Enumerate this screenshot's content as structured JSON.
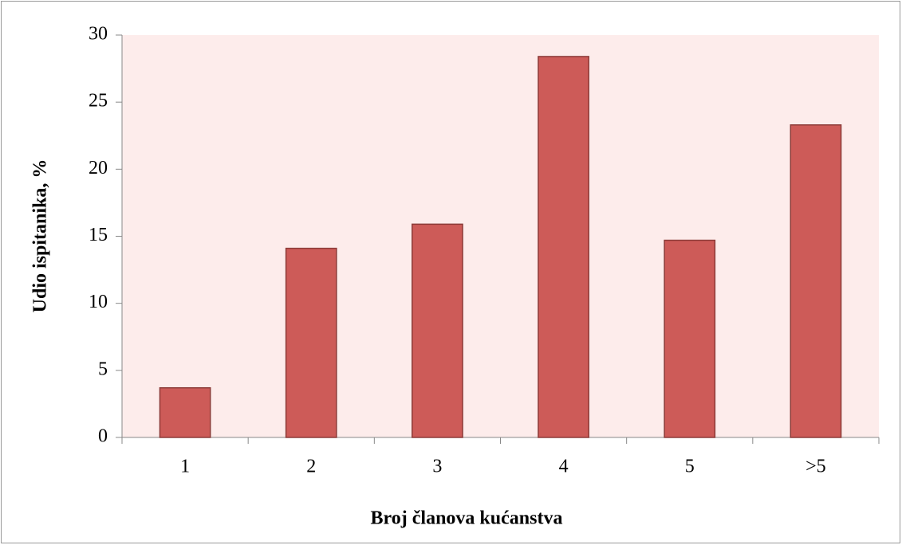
{
  "chart_data": {
    "type": "bar",
    "xlabel": "Broj članova kućanstva",
    "ylabel": "Udio ispitanika, %",
    "categories": [
      "1",
      "2",
      "3",
      "4",
      "5",
      ">5"
    ],
    "values": [
      3.7,
      14.1,
      15.9,
      28.4,
      14.7,
      23.3
    ],
    "color": "#cd5b58",
    "ylim": [
      0,
      30
    ],
    "yticks": [
      0,
      5,
      10,
      15,
      20,
      25,
      30
    ]
  }
}
